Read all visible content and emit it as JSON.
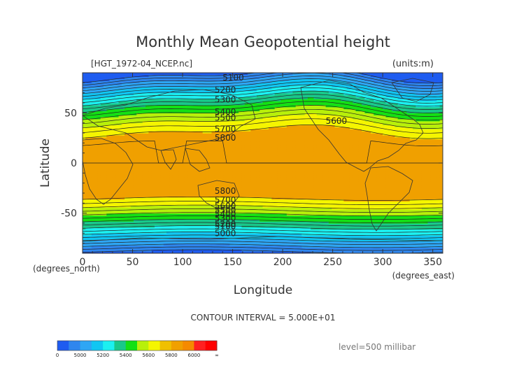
{
  "chart_data": {
    "type": "heatmap",
    "title": "Monthly Mean Geopotential height",
    "filename": "[HGT_1972-04_NCEP.nc]",
    "units": "(units:m)",
    "xlabel": "Longitude",
    "ylabel": "Latitude",
    "x_unit_label": "(degrees_east)",
    "y_unit_label": "(degrees_north)",
    "xlim": [
      0,
      360
    ],
    "ylim": [
      -90,
      90
    ],
    "x_ticks": [
      "0",
      "50",
      "100",
      "150",
      "200",
      "250",
      "300",
      "350"
    ],
    "y_ticks": [
      "50",
      "0",
      "-50"
    ],
    "contour_interval_text": "CONTOUR INTERVAL = 5.000E+01",
    "level_text": "level=500 millibar",
    "contour_labels": [
      {
        "text": "5100",
        "x": 140,
        "y": 85
      },
      {
        "text": "5200",
        "x": 132,
        "y": 73
      },
      {
        "text": "5300",
        "x": 132,
        "y": 63
      },
      {
        "text": "5400",
        "x": 132,
        "y": 51
      },
      {
        "text": "5500",
        "x": 132,
        "y": 45
      },
      {
        "text": "5600",
        "x": 243,
        "y": 42
      },
      {
        "text": "5700",
        "x": 132,
        "y": 34
      },
      {
        "text": "5800",
        "x": 132,
        "y": 25
      },
      {
        "text": "5800",
        "x": 132,
        "y": -28
      },
      {
        "text": "5700",
        "x": 132,
        "y": -37
      },
      {
        "text": "5600",
        "x": 132,
        "y": -43
      },
      {
        "text": "5500",
        "x": 132,
        "y": -47
      },
      {
        "text": "5400",
        "x": 132,
        "y": -51
      },
      {
        "text": "5300",
        "x": 132,
        "y": -55
      },
      {
        "text": "5200",
        "x": 132,
        "y": -61
      },
      {
        "text": "5100",
        "x": 132,
        "y": -63
      },
      {
        "text": "5000",
        "x": 132,
        "y": -70
      }
    ],
    "color_bands": [
      {
        "min": 4900,
        "max": 5000,
        "color": "#1f5cf0"
      },
      {
        "min": 5000,
        "max": 5100,
        "color": "#2f86ee"
      },
      {
        "min": 5100,
        "max": 5200,
        "color": "#2ea6f4"
      },
      {
        "min": 5200,
        "max": 5300,
        "color": "#11c6f2"
      },
      {
        "min": 5300,
        "max": 5400,
        "color": "#1cf0f0"
      },
      {
        "min": 5400,
        "max": 5500,
        "color": "#19c88a"
      },
      {
        "min": 5500,
        "max": 5600,
        "color": "#14e014"
      },
      {
        "min": 5600,
        "max": 5700,
        "color": "#b8f00a"
      },
      {
        "min": 5700,
        "max": 5800,
        "color": "#f5f500"
      },
      {
        "min": 5800,
        "max": 5900,
        "color": "#f0a000"
      },
      {
        "min": 5900,
        "max": 6000,
        "color": "#f5a000"
      }
    ],
    "colorbar": {
      "labels": [
        "0",
        "5000",
        "5200",
        "5400",
        "5600",
        "5800",
        "6000",
        "∞"
      ],
      "colors": [
        "#1f5cf0",
        "#2f86ee",
        "#2ea6f4",
        "#11c6f2",
        "#1cf0f0",
        "#19c88a",
        "#14e014",
        "#b8f00a",
        "#f5f500",
        "#f0c000",
        "#f0a000",
        "#f58a00",
        "#ff2020",
        "#ff0000"
      ]
    }
  }
}
